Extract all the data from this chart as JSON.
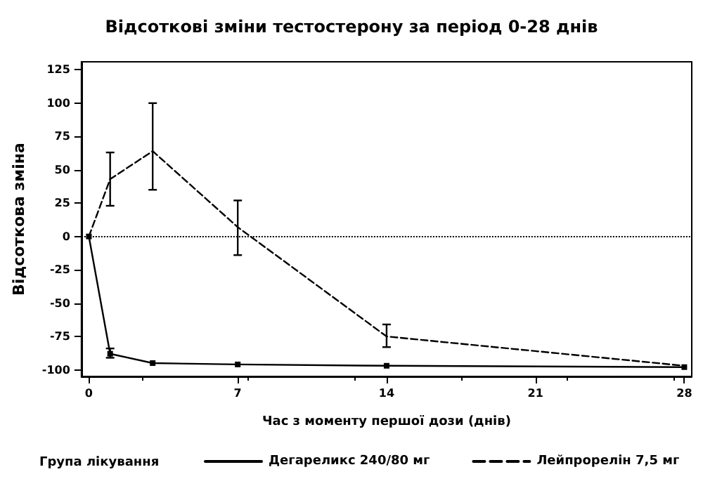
{
  "chart_data": {
    "type": "line",
    "title": "Відсоткові зміни тестостерону за період 0-28 днів",
    "xlabel": "Час з моменту першої дози (днів)",
    "ylabel": "Відсоткова зміна",
    "legend_title": "Група лікування",
    "x": [
      0,
      1,
      3,
      7,
      14,
      28
    ],
    "series": [
      {
        "name": "Дегареликс 240/80 мг",
        "color": "#000000",
        "line_style": "solid",
        "marker": "square",
        "values": [
          0,
          -88,
          -95,
          -96,
          -97,
          -98
        ],
        "errors": [
          null,
          [
            -91,
            -84
          ],
          null,
          null,
          null,
          null
        ]
      },
      {
        "name": "Лейпрорелін 7,5 мг",
        "color": "#000000",
        "line_style": "dashed",
        "marker": "none",
        "values": [
          0,
          43,
          64,
          7,
          -75,
          -97
        ],
        "errors": [
          null,
          [
            23,
            63
          ],
          [
            35,
            100
          ],
          [
            -14,
            27
          ],
          [
            -83,
            -66
          ],
          null
        ]
      }
    ],
    "xlim": [
      -0.35,
      28.35
    ],
    "xticks": [
      0,
      7,
      14,
      21,
      28
    ],
    "ylim": [
      -105,
      131
    ],
    "yticks": [
      -100,
      -75,
      -50,
      -25,
      0,
      25,
      50,
      75,
      100,
      125
    ],
    "ref_lines": [
      {
        "axis": "y",
        "value": 0,
        "line_style": "dotted",
        "color": "#000000"
      }
    ],
    "grid": false,
    "legend": "bottom"
  }
}
